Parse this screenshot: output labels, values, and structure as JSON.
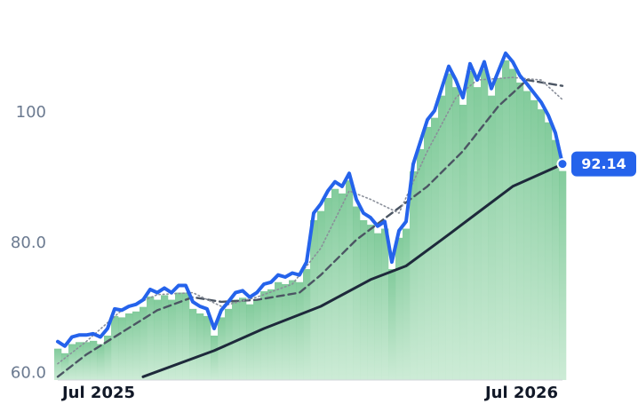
{
  "chart_data": {
    "type": "line",
    "ylim": [
      59,
      117
    ],
    "yticks": [
      {
        "value": 60,
        "label": "60.0"
      },
      {
        "value": 80,
        "label": "80.0"
      },
      100
    ],
    "xlim": [
      0,
      71
    ],
    "xticks": [
      {
        "value": 5.75,
        "label": "Jul 2025"
      },
      {
        "value": 65.25,
        "label": "Jul 2026"
      }
    ],
    "bars_under_first_series": true,
    "bar_colors": [
      "#6cc28a",
      "#c4e8cf"
    ],
    "series": [
      {
        "color": "#2563eb",
        "width": 4,
        "style": "solid",
        "values": [
          64.9,
          64.2,
          65.6,
          65.9,
          65.9,
          66.1,
          65.6,
          66.9,
          69.9,
          69.7,
          70.3,
          70.6,
          71.3,
          72.9,
          72.4,
          73.1,
          72.4,
          73.5,
          73.5,
          71.0,
          70.3,
          69.9,
          66.9,
          69.7,
          71.0,
          72.4,
          72.7,
          71.7,
          72.4,
          73.7,
          74.0,
          75.1,
          74.8,
          75.4,
          75.1,
          77.1,
          84.6,
          86.0,
          88.0,
          89.4,
          88.7,
          90.7,
          86.7,
          84.6,
          83.9,
          82.6,
          83.3,
          77.1,
          81.9,
          83.3,
          92.1,
          95.5,
          98.9,
          100.3,
          103.7,
          107.1,
          105.0,
          102.3,
          107.5,
          105.0,
          107.8,
          103.7,
          106.4,
          109.1,
          107.8,
          105.7,
          104.4,
          103.0,
          101.6,
          99.6,
          96.9,
          92.14
        ]
      },
      {
        "color": "#8a8f9a",
        "width": 1.6,
        "style": "dotted",
        "x": [
          0,
          4,
          9,
          14,
          19,
          23,
          28,
          33,
          37,
          41,
          44,
          48,
          52,
          56,
          59,
          64,
          68,
          71
        ],
        "values": [
          61.5,
          64.9,
          69.7,
          72.1,
          72.4,
          70.3,
          71.7,
          73.7,
          79.2,
          88.0,
          86.7,
          84.6,
          94.1,
          102.3,
          105.0,
          105.4,
          105.0,
          102.0
        ]
      },
      {
        "color": "#4b5563",
        "width": 2.4,
        "style": "dashed",
        "x": [
          0,
          4,
          9,
          14,
          19,
          23,
          28,
          34,
          37,
          42,
          47,
          52,
          57,
          62,
          66,
          71
        ],
        "values": [
          59.5,
          62.9,
          66.3,
          69.7,
          71.7,
          71.0,
          71.3,
          72.4,
          75.1,
          80.5,
          84.6,
          88.7,
          94.1,
          101.0,
          105.0,
          104.1
        ]
      },
      {
        "color": "#1e293b",
        "width": 3,
        "style": "solid",
        "x": [
          12,
          22,
          29,
          37,
          44,
          49,
          54,
          59,
          64,
          71
        ],
        "values": [
          59.5,
          63.5,
          66.9,
          70.3,
          74.4,
          76.5,
          80.5,
          84.6,
          88.7,
          92.1
        ]
      }
    ]
  }
}
